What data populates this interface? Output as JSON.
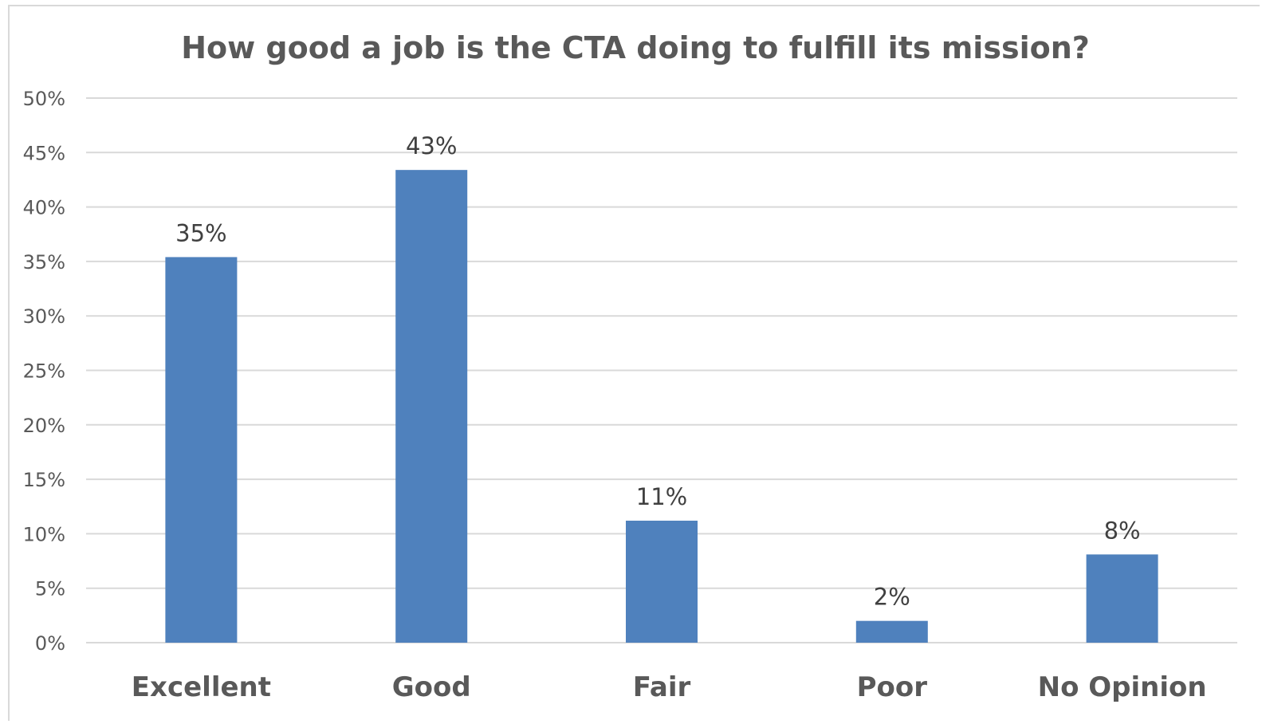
{
  "chart_data": {
    "type": "bar",
    "title": "How good a job is the CTA doing to fulfill its mission?",
    "categories": [
      "Excellent",
      "Good",
      "Fair",
      "Poor",
      "No Opinion"
    ],
    "values": [
      35.4,
      43.4,
      11.2,
      2.0,
      8.1
    ],
    "data_labels": [
      "35%",
      "43%",
      "11%",
      "2%",
      "8%"
    ],
    "ylim": [
      0,
      50
    ],
    "ytick_values": [
      0,
      5,
      10,
      15,
      20,
      25,
      30,
      35,
      40,
      45,
      50
    ],
    "ytick_labels": [
      "0%",
      "5%",
      "10%",
      "15%",
      "20%",
      "25%",
      "30%",
      "35%",
      "40%",
      "45%",
      "50%"
    ],
    "grid": true,
    "bar_color": "#4f81bd"
  }
}
